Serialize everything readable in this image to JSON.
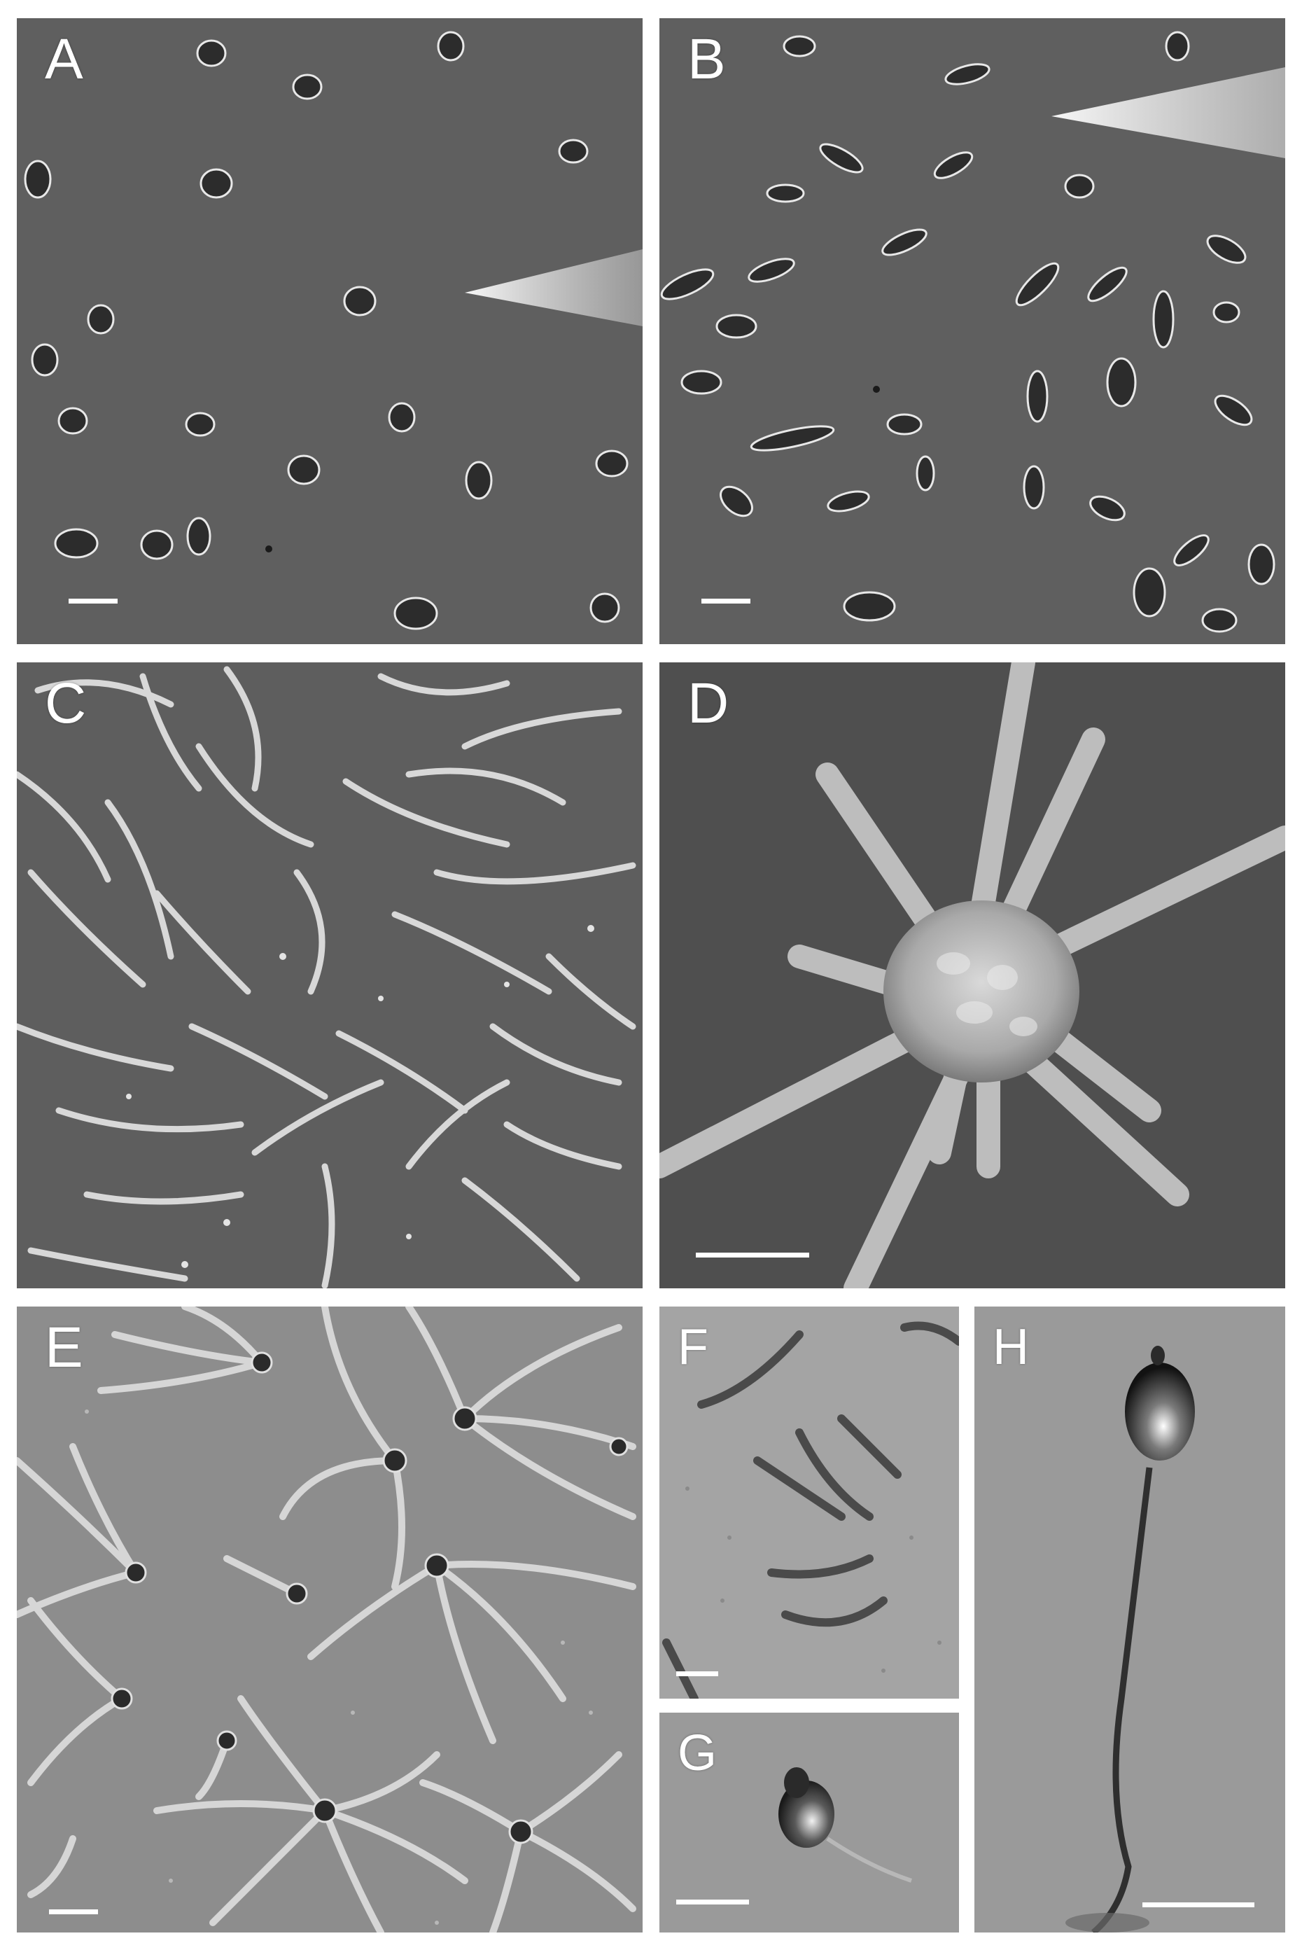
{
  "figure": {
    "panels": [
      {
        "id": "A",
        "label": "A"
      },
      {
        "id": "B",
        "label": "B"
      },
      {
        "id": "C",
        "label": "C"
      },
      {
        "id": "D",
        "label": "D"
      },
      {
        "id": "E",
        "label": "E"
      },
      {
        "id": "F",
        "label": "F"
      },
      {
        "id": "G",
        "label": "G"
      },
      {
        "id": "H",
        "label": "H"
      }
    ]
  },
  "colors": {
    "background": "#ffffff",
    "phase_contrast_gray": "#5f5f5f",
    "sem_gray": "#4f4f4f",
    "dic_gray": "#8d8d8d",
    "label_color": "#ffffff"
  }
}
